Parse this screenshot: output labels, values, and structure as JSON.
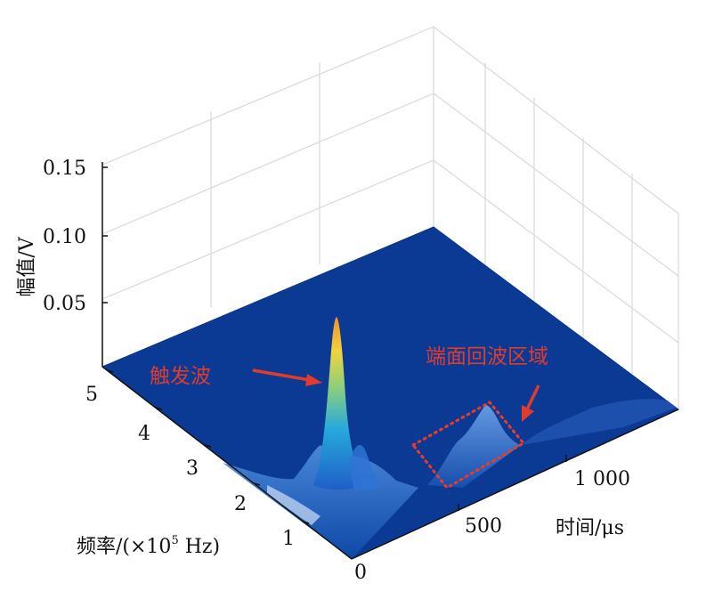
{
  "chart_data": {
    "type": "surface",
    "zlabel": "幅值/V",
    "zticks": [
      "0.05",
      "0.10",
      "0.15"
    ],
    "ylabel_pre": "频率/(×10",
    "ylabel_exp": "5",
    "ylabel_post": " Hz)",
    "yticks": [
      "0",
      "1",
      "2",
      "3",
      "4",
      "5"
    ],
    "xlabel": "时间/μs",
    "xticks": [
      "500",
      "1 000"
    ],
    "zlim": [
      0,
      0.15
    ],
    "grid": true,
    "peaks": [
      {
        "label": "触发波",
        "time_us": 80,
        "freq_1e5Hz": 2.6,
        "amplitude_v": 0.13
      },
      {
        "label": "端面回波区域",
        "time_us": 950,
        "freq_1e5Hz": 2.2,
        "amplitude_v": 0.012
      }
    ],
    "colors": {
      "base": "#0b3a94",
      "low": "#2a6fd6",
      "mid": "#29b5d9",
      "high": "#f1d43a",
      "peak": "#f58d2b",
      "annotation": "#e03b2c"
    }
  }
}
